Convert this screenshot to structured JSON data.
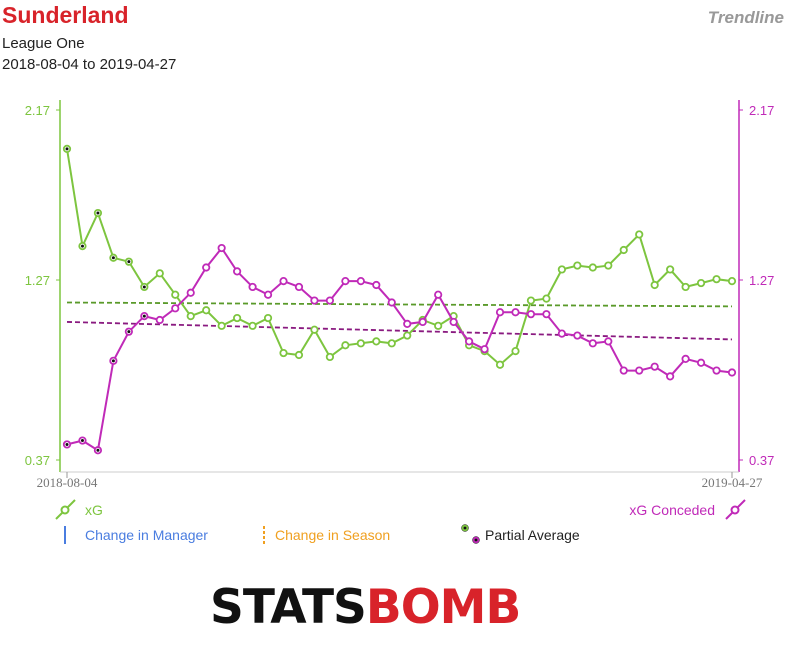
{
  "header": {
    "team": "Sunderland",
    "league": "League One",
    "date_range": "2018-08-04 to 2019-04-27",
    "view_label": "Trendline"
  },
  "legend": {
    "xg": "xG",
    "xg_conceded": "xG Conceded",
    "change_manager": "Change in Manager",
    "change_season": "Change in Season",
    "partial_average": "Partial Average"
  },
  "logo": {
    "text_left": "STATS",
    "text_right": "BOMB"
  },
  "colors": {
    "xg": "#7dc53f",
    "xg_conceded": "#c02ab8",
    "manager": "#4a7de0",
    "season": "#f0a020",
    "trend_xg": "#5a9a2a",
    "trend_conceded": "#8a1a80",
    "logo_dark": "#111111",
    "logo_red": "#d8232a"
  },
  "chart_data": {
    "type": "line",
    "x_start_label": "2018-08-04",
    "x_end_label": "2019-04-27",
    "y_left_ticks": [
      "0.37",
      "1.27",
      "2.17"
    ],
    "y_right_ticks": [
      "0.37",
      "1.27",
      "2.17"
    ],
    "ylim": [
      0.37,
      2.17
    ],
    "partial_average_count": 6,
    "series": [
      {
        "name": "xG",
        "values": [
          1.97,
          1.47,
          1.64,
          1.41,
          1.39,
          1.26,
          1.33,
          1.22,
          1.11,
          1.14,
          1.06,
          1.1,
          1.06,
          1.1,
          0.92,
          0.91,
          1.04,
          0.9,
          0.96,
          0.97,
          0.98,
          0.97,
          1.01,
          1.09,
          1.06,
          1.11,
          0.96,
          0.93,
          0.86,
          0.93,
          1.19,
          1.2,
          1.35,
          1.37,
          1.36,
          1.37,
          1.45,
          1.53,
          1.27,
          1.35,
          1.26,
          1.28,
          1.3,
          1.29
        ],
        "trend": [
          1.18,
          1.16
        ]
      },
      {
        "name": "xG Conceded",
        "values": [
          0.45,
          0.47,
          0.42,
          0.88,
          1.03,
          1.11,
          1.09,
          1.15,
          1.23,
          1.36,
          1.46,
          1.34,
          1.26,
          1.22,
          1.29,
          1.26,
          1.19,
          1.19,
          1.29,
          1.29,
          1.27,
          1.18,
          1.07,
          1.08,
          1.22,
          1.08,
          0.98,
          0.94,
          1.13,
          1.13,
          1.12,
          1.12,
          1.02,
          1.01,
          0.97,
          0.98,
          0.83,
          0.83,
          0.85,
          0.8,
          0.89,
          0.87,
          0.83,
          0.82
        ],
        "trend": [
          1.08,
          0.99
        ]
      }
    ]
  }
}
